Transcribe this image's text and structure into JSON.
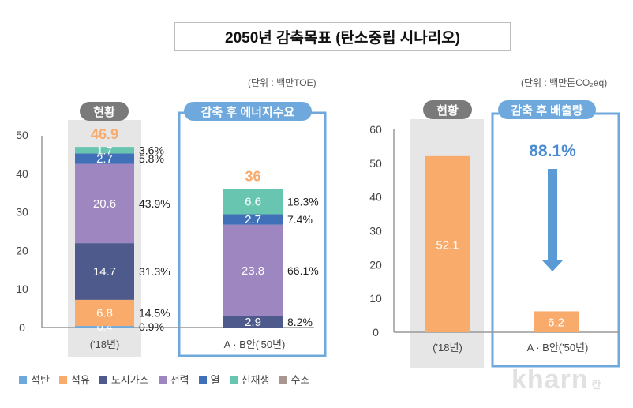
{
  "title": "2050년 감축목표 (탄소중립 시나리오)",
  "colors": {
    "coal": "#6fa8dc",
    "oil": "#f9ab6c",
    "city_gas": "#4f5a8c",
    "electricity": "#9e86c0",
    "heat": "#4070b8",
    "renewable": "#68c5b0",
    "hydrogen": "#a89690",
    "badge_current": "#7a7a7a",
    "badge_after": "#6fa8dc",
    "frame_after": "#6fa8dc",
    "highlight_bg": "#e6e6e6",
    "total_label": "#f9ab6c",
    "arrow": "#5b9bd5",
    "reduction_text": "#4a8ad0"
  },
  "legend": [
    {
      "key": "coal",
      "label": "석탄"
    },
    {
      "key": "oil",
      "label": "석유"
    },
    {
      "key": "city_gas",
      "label": "도시가스"
    },
    {
      "key": "electricity",
      "label": "전력"
    },
    {
      "key": "heat",
      "label": "열"
    },
    {
      "key": "renewable",
      "label": "신재생"
    },
    {
      "key": "hydrogen",
      "label": "수소"
    }
  ],
  "watermark": {
    "text": "kharn",
    "suffix": "칸"
  },
  "chart_data": [
    {
      "type": "bar",
      "stacked": true,
      "title": "에너지수요",
      "unit_label": "(단위 : 백만TOE)",
      "categories": [
        "('18년)",
        "A · B안('50년)"
      ],
      "group_labels": [
        "현황",
        "감축 후 에너지수요"
      ],
      "ylim": [
        0,
        50
      ],
      "yticks": [
        0,
        10,
        20,
        30,
        40,
        50
      ],
      "totals": [
        "46.9",
        "36"
      ],
      "series": [
        {
          "key": "coal",
          "name": "석탄",
          "values": [
            0.4,
            0
          ],
          "pct": [
            "0.9%",
            null
          ]
        },
        {
          "key": "oil",
          "name": "석유",
          "values": [
            6.8,
            0
          ],
          "pct": [
            "14.5%",
            null
          ]
        },
        {
          "key": "city_gas",
          "name": "도시가스",
          "values": [
            14.7,
            2.9
          ],
          "pct": [
            "31.3%",
            "8.2%"
          ]
        },
        {
          "key": "electricity",
          "name": "전력",
          "values": [
            20.6,
            23.8
          ],
          "pct": [
            "43.9%",
            "66.1%"
          ]
        },
        {
          "key": "heat",
          "name": "열",
          "values": [
            2.7,
            2.7
          ],
          "pct": [
            "5.8%",
            "7.4%"
          ]
        },
        {
          "key": "renewable",
          "name": "신재생",
          "values": [
            1.7,
            6.6
          ],
          "pct": [
            "3.6%",
            "18.3%"
          ]
        }
      ]
    },
    {
      "type": "bar",
      "title": "배출량",
      "unit_label": "(단위 : 백만톤CO₂eq)",
      "categories": [
        "('18년)",
        "A · B안('50년)"
      ],
      "group_labels": [
        "현황",
        "감축 후 배출량"
      ],
      "ylim": [
        0,
        60
      ],
      "yticks": [
        0,
        10,
        20,
        30,
        40,
        50,
        60
      ],
      "values": [
        52.1,
        6.2
      ],
      "value_labels": [
        "52.1",
        "6.2"
      ],
      "annotation": "88.1%"
    }
  ]
}
